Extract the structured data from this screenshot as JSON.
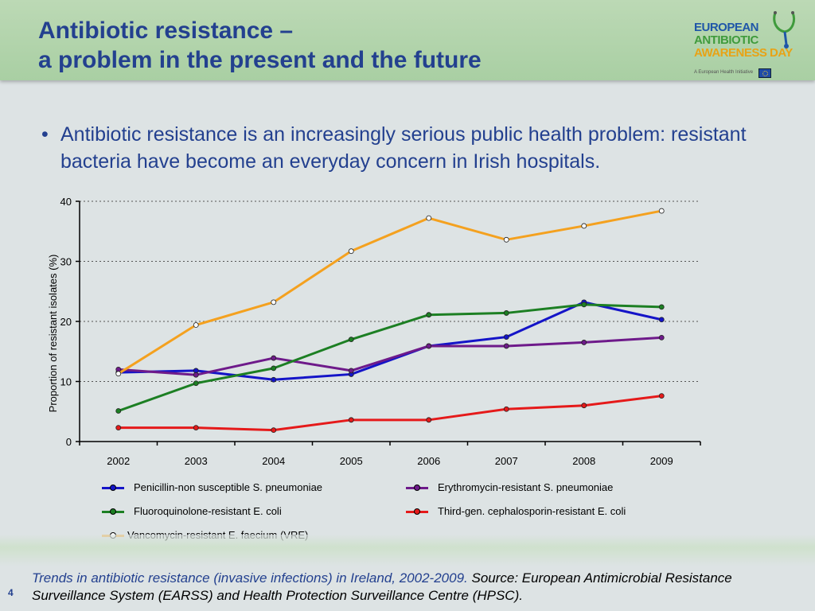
{
  "header": {
    "title_line1": "Antibiotic resistance –",
    "title_line2": "a problem in the present and the future"
  },
  "logo": {
    "line1": "EUROPEAN",
    "line2": "ANTIBIOTIC",
    "line3": "AWARENESS DAY",
    "tagline": "A European Health Initiative",
    "icon": "stethoscope-icon"
  },
  "bullet": {
    "symbol": "•",
    "text": "Antibiotic resistance is an increasingly serious public health problem: resistant bacteria have become an everyday concern in Irish hospitals."
  },
  "chart_data": {
    "type": "line",
    "title": "",
    "xlabel": "",
    "ylabel": "Proportion of resistant isolates (%)",
    "ylim": [
      0,
      40
    ],
    "yticks": [
      0,
      10,
      20,
      30,
      40
    ],
    "grid": "horizontal dotted",
    "legend_placement": "bottom",
    "x": [
      "2002",
      "2003",
      "2004",
      "2005",
      "2006",
      "2007",
      "2008",
      "2009"
    ],
    "series": [
      {
        "name": "Penicillin-non susceptible S. pneumoniae",
        "color": "#1414c8",
        "marker_fill": "#1414c8",
        "values": [
          11.5,
          11.8,
          10.3,
          11.2,
          15.9,
          17.4,
          23.2,
          20.3
        ]
      },
      {
        "name": "Erythromycin-resistant S. pneumoniae",
        "color": "#6e1a8a",
        "marker_fill": "#6e1a8a",
        "values": [
          12.0,
          11.1,
          13.9,
          11.8,
          15.9,
          15.9,
          16.5,
          17.3
        ]
      },
      {
        "name": "Fluoroquinolone-resistant E. coli",
        "color": "#1c7f23",
        "marker_fill": "#1c7f23",
        "values": [
          5.1,
          9.7,
          12.2,
          17.0,
          21.1,
          21.4,
          22.8,
          22.4
        ]
      },
      {
        "name": "Third-gen. cephalosporin-resistant E. coli",
        "color": "#e51a1a",
        "marker_fill": "#e51a1a",
        "values": [
          2.3,
          2.3,
          1.9,
          3.6,
          3.6,
          5.4,
          6.0,
          7.6
        ]
      },
      {
        "name": "Vancomycin-resistant E. faecium (VRE)",
        "color": "#f4a11f",
        "marker_fill": "#ffffff",
        "values": [
          11.3,
          19.4,
          23.2,
          31.7,
          37.2,
          33.6,
          35.9,
          38.4
        ]
      }
    ]
  },
  "caption": {
    "part1": "Trends in antibiotic resistance (invasive infections) in Ireland, 2002-2009.",
    "part2": "Source: European Antimicrobial Resistance Surveillance System (EARSS) and Health Protection Surveillance Centre (HPSC)."
  },
  "page_number": "4"
}
